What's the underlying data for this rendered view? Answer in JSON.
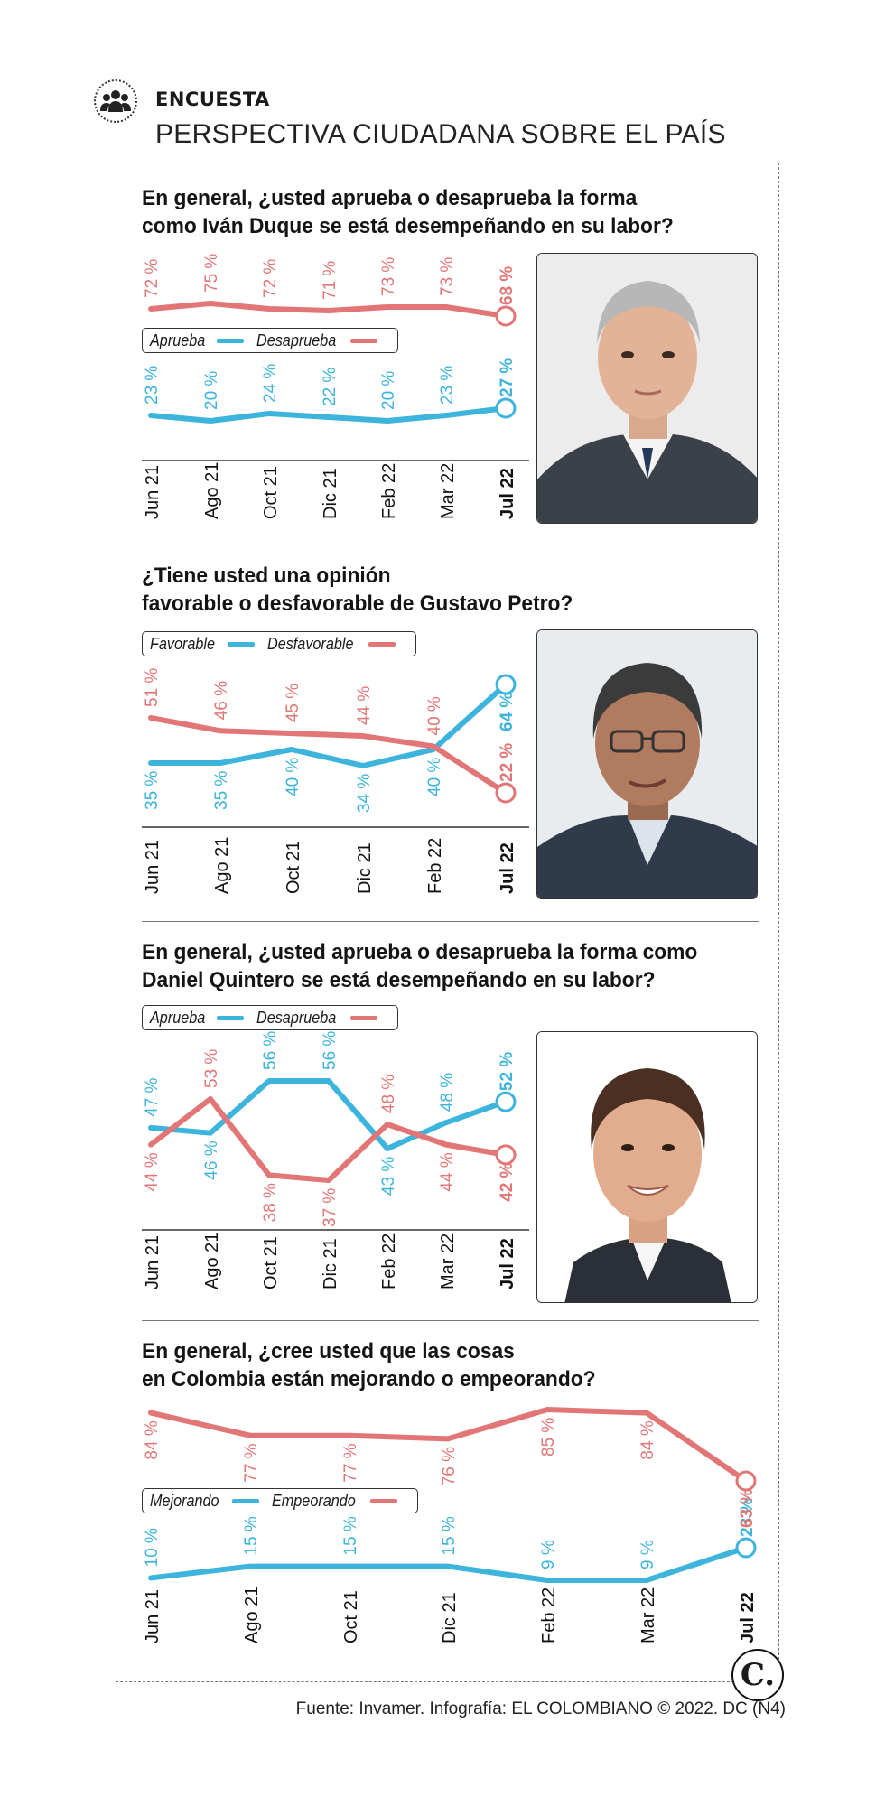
{
  "header": {
    "kicker": "ENCUESTA",
    "title": "PERSPECTIVA CIUDADANA SOBRE EL PAÍS"
  },
  "colors": {
    "blue": "#3db4dc",
    "red": "#e27676"
  },
  "icons": {
    "header": "people-group-icon",
    "brand": "el-colombiano-logo"
  },
  "source": "Fuente: Invamer. Infografía: EL COLOMBIANO © 2022. DC (N4)",
  "brand_letter": "C.",
  "chart_data": [
    {
      "type": "line",
      "title_lines": [
        "En general, ¿usted aprueba o desaprueba la forma",
        "como Iván Duque se está desempeñando en su labor?"
      ],
      "categories": [
        "Jun 21",
        "Ago 21",
        "Oct 21",
        "Dic 21",
        "Feb 22",
        "Mar 22",
        "Jul 22"
      ],
      "series": [
        {
          "name": "Aprueba",
          "color": "#3db4dc",
          "values": [
            23,
            20,
            24,
            22,
            20,
            23,
            27
          ],
          "labels": [
            "23 %",
            "20 %",
            "24 %",
            "22 %",
            "20 %",
            "23 %",
            "27 %"
          ]
        },
        {
          "name": "Desaprueba",
          "color": "#e27676",
          "values": [
            72,
            75,
            72,
            71,
            73,
            73,
            68
          ],
          "labels": [
            "72 %",
            "75 %",
            "72 %",
            "71 %",
            "73 %",
            "73 %",
            "68 %"
          ]
        }
      ]
    },
    {
      "type": "line",
      "title_lines": [
        "¿Tiene usted una opinión",
        "favorable o desfavorable de Gustavo Petro?"
      ],
      "categories": [
        "Jun 21",
        "Ago 21",
        "Oct 21",
        "Dic 21",
        "Feb 22",
        "Jul 22"
      ],
      "series": [
        {
          "name": "Favorable",
          "color": "#3db4dc",
          "values": [
            35,
            35,
            40,
            34,
            40,
            64
          ],
          "labels": [
            "35 %",
            "35 %",
            "40 %",
            "34 %",
            "40 %",
            "64 %"
          ]
        },
        {
          "name": "Desfavorable",
          "color": "#e27676",
          "values": [
            51,
            46,
            45,
            44,
            40,
            22
          ],
          "labels": [
            "51 %",
            "46 %",
            "45 %",
            "44 %",
            "40 %",
            "22 %"
          ]
        }
      ]
    },
    {
      "type": "line",
      "title_lines": [
        "En general, ¿usted aprueba o desaprueba la forma como",
        "Daniel Quintero se está desempeñando en su labor?"
      ],
      "categories": [
        "Jun 21",
        "Ago 21",
        "Oct 21",
        "Dic 21",
        "Feb 22",
        "Mar 22",
        "Jul 22"
      ],
      "series": [
        {
          "name": "Aprueba",
          "color": "#3db4dc",
          "values": [
            47,
            46,
            56,
            56,
            43,
            48,
            52
          ],
          "labels": [
            "47 %",
            "46 %",
            "56 %",
            "56 %",
            "43 %",
            "48 %",
            "52 %"
          ]
        },
        {
          "name": "Desaprueba",
          "color": "#e27676",
          "values": [
            44,
            53,
            38,
            37,
            48,
            44,
            42
          ],
          "labels": [
            "44 %",
            "53 %",
            "38 %",
            "37 %",
            "48 %",
            "44 %",
            "42 %"
          ]
        }
      ]
    },
    {
      "type": "line",
      "title_lines": [
        "En general, ¿cree usted que las cosas",
        "en Colombia están mejorando o empeorando?"
      ],
      "categories": [
        "Jun 21",
        "Ago 21",
        "Oct 21",
        "Dic 21",
        "Feb 22",
        "Mar 22",
        "Jul 22"
      ],
      "series": [
        {
          "name": "Mejorando",
          "color": "#3db4dc",
          "values": [
            10,
            15,
            15,
            15,
            9,
            9,
            23
          ],
          "labels": [
            "10 %",
            "15 %",
            "15 %",
            "15 %",
            "9 %",
            "9 %",
            "23 %"
          ]
        },
        {
          "name": "Empeorando",
          "color": "#e27676",
          "values": [
            84,
            77,
            77,
            76,
            85,
            84,
            63
          ],
          "labels": [
            "84 %",
            "77 %",
            "77 %",
            "76 %",
            "85 %",
            "84 %",
            "63 %"
          ]
        }
      ]
    }
  ]
}
